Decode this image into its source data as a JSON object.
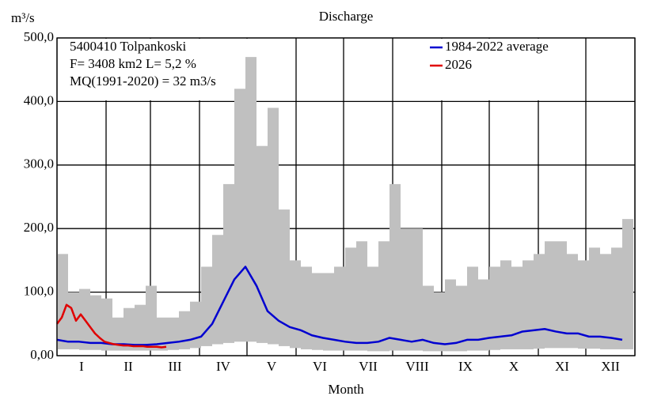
{
  "chart_data": {
    "type": "line",
    "title": "Discharge",
    "y_label": "m³/s",
    "x_label": "Month",
    "annotations": [
      "5400410 Tolpankoski",
      "F=   3408 km2 L=  5,2 %",
      "MQ(1991-2020) = 32 m3/s"
    ],
    "categories": [
      "I",
      "II",
      "III",
      "IV",
      "V",
      "VI",
      "VII",
      "VIII",
      "IX",
      "X",
      "XI",
      "XII"
    ],
    "xlim": [
      0,
      365
    ],
    "xticks": [
      0,
      31,
      59,
      90,
      120,
      151,
      181,
      212,
      243,
      273,
      304,
      334,
      365
    ],
    "ylim": [
      0,
      500
    ],
    "yticks": [
      {
        "value": 0,
        "label": "0,00"
      },
      {
        "value": 100,
        "label": "100,0"
      },
      {
        "value": 200,
        "label": "200,0"
      },
      {
        "value": 300,
        "label": "300,0"
      },
      {
        "value": 400,
        "label": "400,0"
      },
      {
        "value": 500,
        "label": "500,0"
      }
    ],
    "grid": true,
    "x": [
      0,
      7,
      14,
      21,
      28,
      35,
      42,
      49,
      56,
      63,
      70,
      77,
      84,
      91,
      98,
      105,
      112,
      119,
      126,
      133,
      140,
      147,
      154,
      161,
      168,
      175,
      182,
      189,
      196,
      203,
      210,
      217,
      224,
      231,
      238,
      245,
      252,
      259,
      266,
      273,
      280,
      287,
      294,
      301,
      308,
      315,
      322,
      329,
      336,
      343,
      350,
      357
    ],
    "band": {
      "color": "#c0c0c0",
      "min": [
        10,
        10,
        9,
        9,
        8,
        8,
        8,
        8,
        8,
        8,
        9,
        10,
        12,
        15,
        18,
        20,
        22,
        22,
        20,
        18,
        15,
        12,
        10,
        9,
        8,
        8,
        8,
        8,
        7,
        7,
        8,
        8,
        8,
        7,
        7,
        7,
        7,
        8,
        8,
        9,
        10,
        10,
        10,
        11,
        12,
        12,
        12,
        11,
        11,
        10,
        10,
        10
      ],
      "max": [
        160,
        100,
        105,
        95,
        90,
        60,
        75,
        80,
        110,
        60,
        60,
        70,
        85,
        140,
        190,
        270,
        420,
        470,
        330,
        390,
        230,
        150,
        140,
        130,
        130,
        140,
        170,
        180,
        140,
        180,
        270,
        200,
        200,
        110,
        100,
        120,
        110,
        140,
        120,
        140,
        150,
        140,
        150,
        160,
        180,
        180,
        160,
        150,
        170,
        160,
        170,
        215
      ]
    },
    "series": [
      {
        "name": "1984-2022 average",
        "color": "#0000d0",
        "values": [
          25,
          22,
          22,
          20,
          20,
          18,
          18,
          17,
          17,
          18,
          20,
          22,
          25,
          30,
          50,
          85,
          120,
          140,
          110,
          70,
          55,
          45,
          40,
          32,
          28,
          25,
          22,
          20,
          20,
          22,
          28,
          25,
          22,
          25,
          20,
          18,
          20,
          25,
          25,
          28,
          30,
          32,
          38,
          40,
          42,
          38,
          35,
          35,
          30,
          30,
          28,
          25
        ]
      },
      {
        "name": "2026",
        "color": "#e00000",
        "x": [
          0,
          3,
          6,
          9,
          12,
          15,
          18,
          21,
          24,
          27,
          30,
          33,
          36,
          39,
          42,
          45,
          48,
          51,
          54,
          57,
          60,
          63,
          66,
          69
        ],
        "values": [
          50,
          60,
          80,
          75,
          55,
          65,
          55,
          45,
          35,
          28,
          22,
          20,
          18,
          17,
          16,
          16,
          15,
          15,
          15,
          14,
          14,
          14,
          13,
          14
        ]
      }
    ],
    "legend": "upper right"
  }
}
